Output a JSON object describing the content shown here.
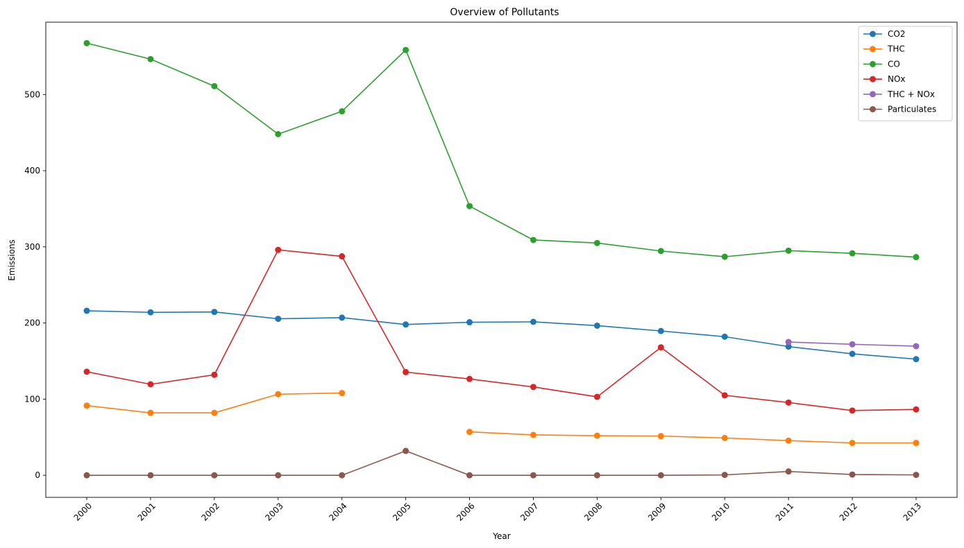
{
  "chart_data": {
    "type": "line",
    "title": "Overview of Pollutants",
    "xlabel": "Year",
    "ylabel": "Emissions",
    "categories": [
      "2000",
      "2001",
      "2002",
      "2003",
      "2004",
      "2005",
      "2006",
      "2007",
      "2008",
      "2009",
      "2010",
      "2011",
      "2012",
      "2013"
    ],
    "ylim": [
      -29,
      595
    ],
    "yticks": [
      0,
      100,
      200,
      300,
      400,
      500
    ],
    "grid": false,
    "legend_position": "top-right",
    "series": [
      {
        "name": "CO2",
        "color": "#1f77b4",
        "values": [
          216,
          214,
          214.5,
          205.5,
          207,
          198,
          201,
          201.5,
          196.5,
          189.5,
          182,
          169,
          159.5,
          152.5
        ]
      },
      {
        "name": "THC",
        "color": "#ff7f0e",
        "values": [
          91.5,
          82,
          82,
          106.5,
          108,
          null,
          57,
          53,
          52,
          51.5,
          49,
          45.5,
          42.5,
          42.5
        ]
      },
      {
        "name": "CO",
        "color": "#2ca02c",
        "values": [
          567.5,
          546.5,
          511,
          448,
          478,
          558.5,
          353.5,
          309,
          305,
          294.5,
          287,
          295,
          291.5,
          286.5
        ]
      },
      {
        "name": "NOx",
        "color": "#d62728",
        "values": [
          136,
          119.5,
          132,
          296,
          287.5,
          135.5,
          126.5,
          116,
          103,
          168,
          105,
          95.5,
          85,
          86.5
        ]
      },
      {
        "name": "THC + NOx",
        "color": "#9467bd",
        "values": [
          null,
          null,
          null,
          null,
          null,
          null,
          null,
          null,
          null,
          null,
          null,
          175,
          172,
          169.5
        ]
      },
      {
        "name": "Particulates",
        "color": "#8c564b",
        "values": [
          0,
          0,
          0,
          0,
          0,
          32,
          0,
          0,
          0,
          0,
          0.5,
          5,
          1,
          0.5
        ]
      }
    ]
  }
}
